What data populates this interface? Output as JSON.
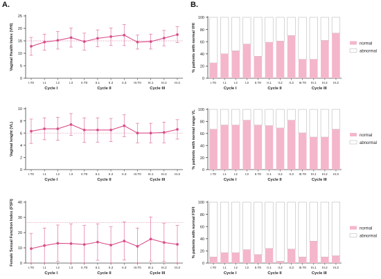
{
  "panel_letters": {
    "a": "A.",
    "b": "B."
  },
  "colors": {
    "pink": "#d94f8a",
    "pink_fill": "#f4b6cb",
    "bar_outline": "#b9b9b9",
    "axis": "#444444",
    "ref_line": "#d97aa3"
  },
  "chart_data": [
    {
      "id": "vhi-line",
      "type": "line",
      "title": "",
      "ylabel": "Vaginal Health Index (VHI)",
      "ylim": [
        0,
        25
      ],
      "yticks": [
        0,
        5,
        10,
        15,
        20,
        25
      ],
      "categories": [
        "I.T0",
        "I.1",
        "I.2",
        "I.3",
        "II.T0",
        "II.1",
        "II.2",
        "II.3",
        "III.T0",
        "III.1",
        "III.2",
        "III.3"
      ],
      "groups": [
        {
          "label": "Cycle I",
          "from": 0,
          "to": 3
        },
        {
          "label": "Cycle II",
          "from": 4,
          "to": 7
        },
        {
          "label": "Cycle III",
          "from": 8,
          "to": 11
        }
      ],
      "reference_line": 15,
      "series": [
        {
          "values": [
            12.8,
            14.5,
            15.2,
            16.3,
            14.7,
            16.0,
            16.7,
            17.3,
            14.5,
            14.7,
            16.1,
            17.5
          ],
          "err": [
            3.6,
            3.2,
            3.5,
            3.8,
            3.4,
            3.4,
            3.5,
            4.2,
            2.8,
            3.0,
            3.1,
            3.2
          ]
        }
      ]
    },
    {
      "id": "vhi-bar",
      "type": "bar",
      "stacked": true,
      "ylabel": "% patients with normal VHI",
      "ylim": [
        0,
        100
      ],
      "yticks": [
        0,
        20,
        40,
        60,
        80,
        100
      ],
      "categories": [
        "I.T0",
        "I.1",
        "I.2",
        "I.3",
        "II.T0",
        "II.1",
        "II.2",
        "II.3",
        "III.T0",
        "III.1",
        "III.2",
        "III.3"
      ],
      "groups": [
        {
          "label": "Cycle I",
          "from": 0,
          "to": 3
        },
        {
          "label": "Cycle II",
          "from": 4,
          "to": 7
        },
        {
          "label": "Cycle III",
          "from": 8,
          "to": 11
        }
      ],
      "series": [
        {
          "name": "normal",
          "values": [
            25,
            40,
            45,
            56,
            36,
            59,
            61,
            70,
            31,
            31,
            62,
            74
          ]
        },
        {
          "name": "abnormal",
          "values": [
            75,
            60,
            55,
            44,
            64,
            41,
            39,
            30,
            69,
            69,
            38,
            26
          ]
        }
      ],
      "legend_position": "right"
    },
    {
      "id": "vl-line",
      "type": "line",
      "ylabel": "Vaginal lenght (VL)",
      "ylim": [
        0,
        10
      ],
      "yticks": [
        0,
        2,
        4,
        6,
        8,
        10
      ],
      "categories": [
        "I.T0",
        "I.1",
        "I.2",
        "I.3",
        "II.T0",
        "II.1",
        "II.2",
        "II.3",
        "III.T0",
        "III.1",
        "III.2",
        "III.3"
      ],
      "groups": [
        {
          "label": "Cycle I",
          "from": 0,
          "to": 3
        },
        {
          "label": "Cycle II",
          "from": 4,
          "to": 7
        },
        {
          "label": "Cycle III",
          "from": 8,
          "to": 11
        }
      ],
      "reference_line": 6,
      "series": [
        {
          "values": [
            6.3,
            6.7,
            6.7,
            7.4,
            6.5,
            6.5,
            6.5,
            7.2,
            6.0,
            6.0,
            6.1,
            6.6
          ],
          "err": [
            2.0,
            1.8,
            1.9,
            1.8,
            2.0,
            2.0,
            1.9,
            1.8,
            1.6,
            1.6,
            1.7,
            1.6
          ]
        }
      ]
    },
    {
      "id": "vl-bar",
      "type": "bar",
      "stacked": true,
      "ylabel": "% patients with normal range VL",
      "ylim": [
        0,
        100
      ],
      "yticks": [
        0,
        20,
        40,
        60,
        80,
        100
      ],
      "categories": [
        "I.T0",
        "I.1",
        "I.2",
        "I.3",
        "II.T0",
        "II.1",
        "II.2",
        "II.3",
        "III.T0",
        "III.1",
        "III.2",
        "III.3"
      ],
      "groups": [
        {
          "label": "Cycle I",
          "from": 0,
          "to": 3
        },
        {
          "label": "Cycle II",
          "from": 4,
          "to": 7
        },
        {
          "label": "Cycle III",
          "from": 8,
          "to": 11
        }
      ],
      "series": [
        {
          "name": "normal",
          "values": [
            67,
            74,
            74,
            82,
            74,
            73,
            69,
            82,
            61,
            54,
            54,
            67
          ]
        },
        {
          "name": "abnormal",
          "values": [
            33,
            26,
            26,
            18,
            26,
            27,
            31,
            18,
            39,
            46,
            46,
            33
          ]
        }
      ],
      "legend_position": "right"
    },
    {
      "id": "fsfi-line",
      "type": "line",
      "ylabel": "Female Sexual Function Index (FSFI)",
      "ylim": [
        0,
        40
      ],
      "yticks": [
        0,
        10,
        20,
        30,
        40
      ],
      "categories": [
        "I.T0",
        "I.1",
        "I.2",
        "I.3",
        "II.T0",
        "II.1",
        "II.2",
        "II.3",
        "III.T0",
        "III.1",
        "III.2",
        "III.3"
      ],
      "groups": [
        {
          "label": "Cycle I",
          "from": 0,
          "to": 3
        },
        {
          "label": "Cycle II",
          "from": 4,
          "to": 7
        },
        {
          "label": "Cycle III",
          "from": 8,
          "to": 11
        }
      ],
      "reference_line": 26.5,
      "series": [
        {
          "values": [
            9.5,
            11.5,
            13.0,
            12.8,
            12.2,
            13.8,
            11.8,
            14.5,
            11.0,
            15.8,
            13.5,
            12.3
          ],
          "err": [
            10.0,
            11.5,
            12.0,
            13.0,
            12.5,
            12.0,
            12.0,
            12.5,
            12.0,
            14.5,
            12.5,
            12.5
          ]
        }
      ]
    },
    {
      "id": "fsfi-bar",
      "type": "bar",
      "stacked": true,
      "ylabel": "% patients with normal FSFI",
      "ylim": [
        0,
        100
      ],
      "yticks": [
        0,
        20,
        40,
        60,
        80,
        100
      ],
      "categories": [
        "I.T0",
        "I.1",
        "I.2",
        "I.3",
        "II.T0",
        "II.1",
        "II.2",
        "II.3",
        "III.T0",
        "III.1",
        "III.2",
        "III.3"
      ],
      "groups": [
        {
          "label": "Cycle I",
          "from": 0,
          "to": 3
        },
        {
          "label": "Cycle II",
          "from": 4,
          "to": 7
        },
        {
          "label": "Cycle III",
          "from": 8,
          "to": 11
        }
      ],
      "series": [
        {
          "name": "normal",
          "values": [
            10,
            17,
            17,
            22,
            14,
            24,
            3,
            23,
            10,
            36,
            10,
            12
          ]
        },
        {
          "name": "abnormal",
          "values": [
            90,
            83,
            83,
            78,
            86,
            76,
            97,
            77,
            90,
            64,
            90,
            88
          ]
        }
      ],
      "legend_position": "right"
    }
  ]
}
